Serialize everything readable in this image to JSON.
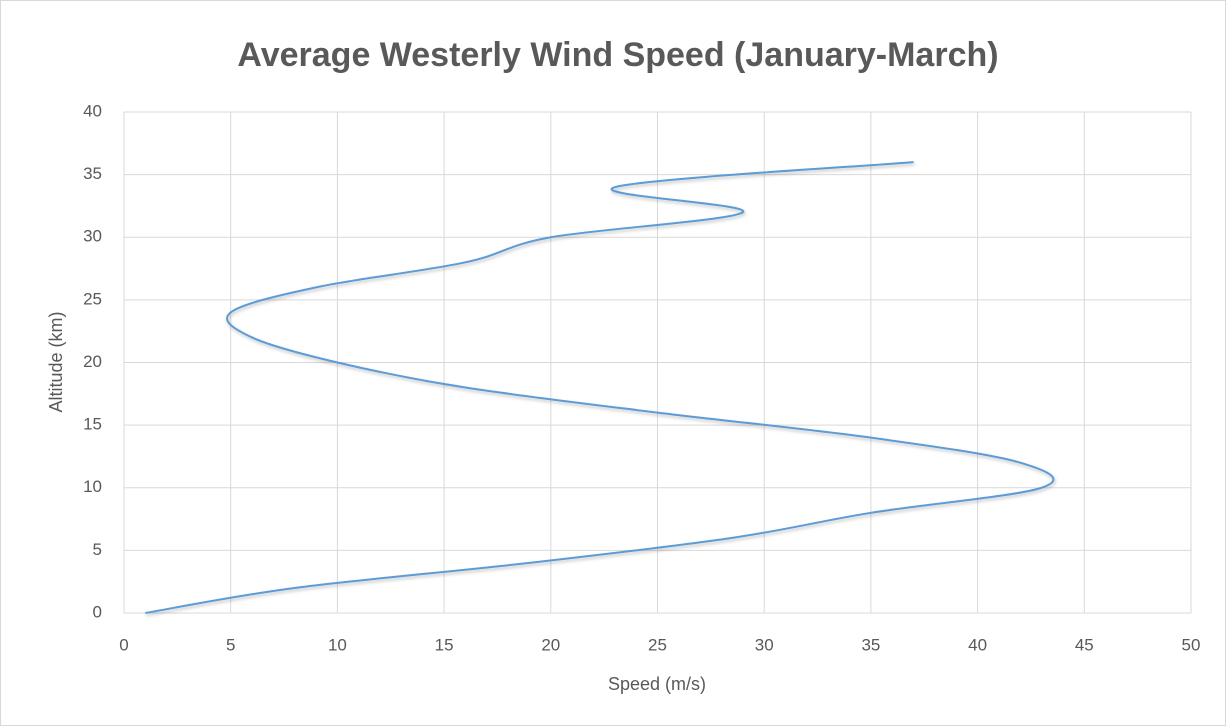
{
  "chart_data": {
    "type": "line",
    "title": "Average Westerly Wind Speed (January-March)",
    "x_label": "Speed (m/s)",
    "y_label": "Altitude (km)",
    "x": [
      1,
      8,
      19,
      28.5,
      35,
      43,
      42,
      35,
      25,
      16,
      10,
      6,
      5,
      9,
      16,
      20,
      29,
      23,
      37
    ],
    "series": [
      {
        "name": "Altitude",
        "color": "#5b9bd5",
        "values": [
          0,
          2,
          4,
          6,
          8,
          10,
          12,
          14,
          16,
          18,
          20,
          22,
          24,
          26,
          28,
          30,
          32,
          34,
          36
        ]
      }
    ],
    "xlim": [
      0,
      50
    ],
    "xticks": [
      0,
      5,
      10,
      15,
      20,
      25,
      30,
      35,
      40,
      45,
      50
    ],
    "ylim": [
      0,
      40
    ],
    "yticks": [
      0,
      5,
      10,
      15,
      20,
      25,
      30,
      35,
      40
    ],
    "grid": true,
    "smooth": true
  }
}
